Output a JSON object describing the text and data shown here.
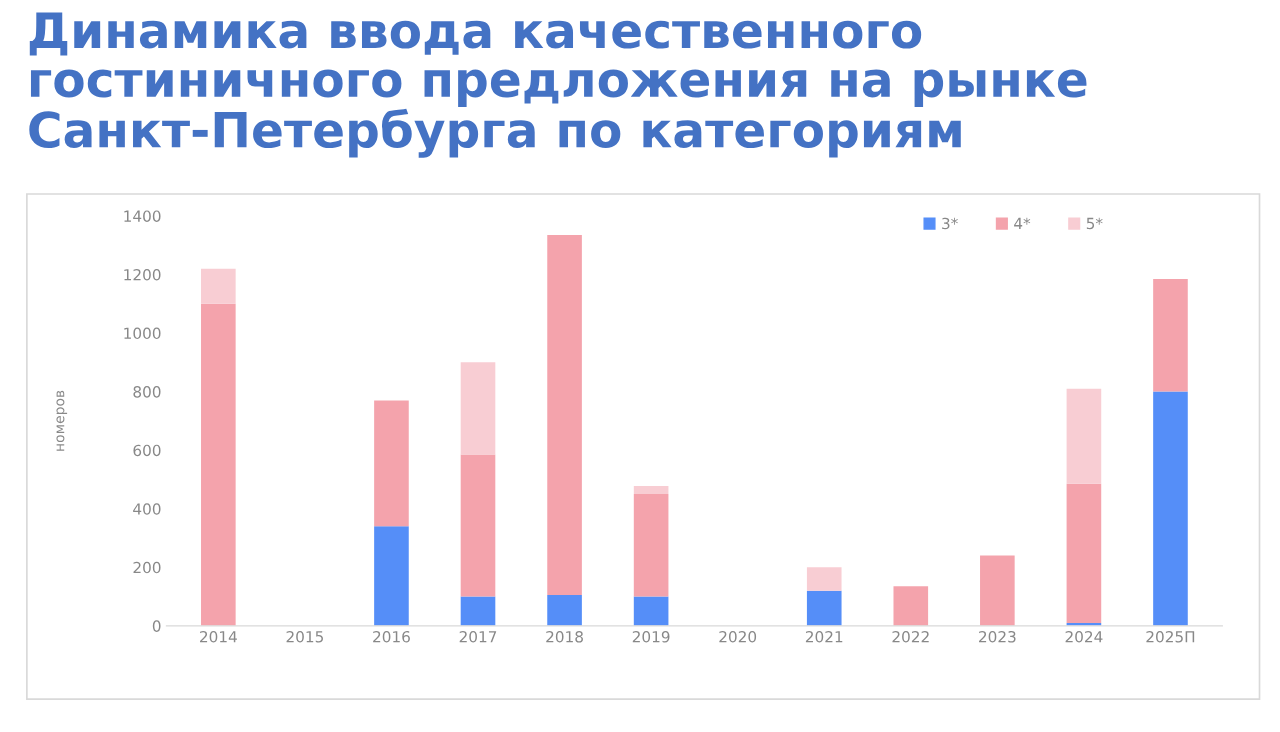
{
  "chart_data": {
    "type": "bar",
    "title": "Динамика ввода качественного гостиничного предложения на рынке Санкт-Петербурга по категориям",
    "ylabel": "номеров",
    "stacked": true,
    "categories": [
      "2014",
      "2015",
      "2016",
      "2017",
      "2018",
      "2019",
      "2020",
      "2021",
      "2022",
      "2023",
      "2024",
      "2025П"
    ],
    "series": [
      {
        "name": "3*",
        "color": "#558ef8",
        "values": [
          0,
          0,
          340,
          100,
          105,
          100,
          0,
          120,
          0,
          0,
          10,
          800
        ]
      },
      {
        "name": "4*",
        "color": "#f4a3ac",
        "values": [
          1100,
          0,
          430,
          485,
          1230,
          350,
          0,
          0,
          135,
          240,
          475,
          385
        ]
      },
      {
        "name": "5*",
        "color": "#f8cdd3",
        "values": [
          120,
          0,
          0,
          315,
          0,
          28,
          0,
          80,
          0,
          0,
          325,
          0
        ]
      }
    ],
    "ylim": [
      0,
      1400
    ],
    "yticks": [
      0,
      200,
      400,
      600,
      800,
      1000,
      1200,
      1400
    ],
    "grid": false,
    "legend": "top right"
  }
}
